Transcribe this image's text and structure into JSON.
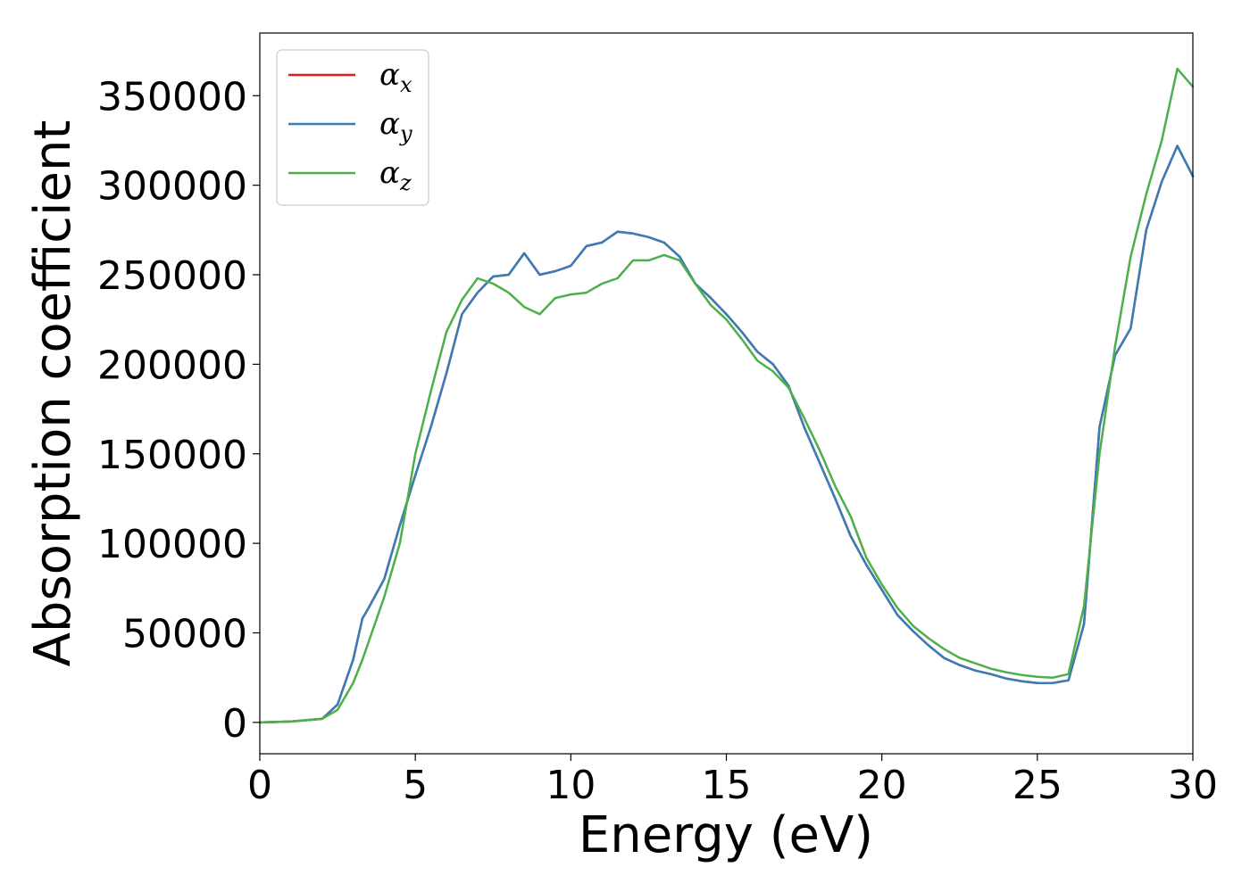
{
  "chart_data": {
    "type": "line",
    "xlabel": "Energy (eV)",
    "ylabel": "Absorption coefficient",
    "xlim": [
      0,
      30
    ],
    "ylim": [
      -17500,
      385000
    ],
    "xticks": [
      0,
      5,
      10,
      15,
      20,
      25,
      30
    ],
    "yticks": [
      0,
      50000,
      100000,
      150000,
      200000,
      250000,
      300000,
      350000
    ],
    "legend_position": "top-left",
    "grid": false,
    "legend": [
      {
        "symbol": "α",
        "sub": "x",
        "color": "#e41a1c"
      },
      {
        "symbol": "α",
        "sub": "y",
        "color": "#377eb8"
      },
      {
        "symbol": "α",
        "sub": "z",
        "color": "#4daf4a"
      }
    ],
    "x": [
      0,
      1,
      2,
      2.5,
      3,
      3.3,
      3.5,
      4,
      4.5,
      5,
      5.5,
      6,
      6.5,
      7,
      7.5,
      8,
      8.5,
      9,
      9.5,
      10,
      10.5,
      11,
      11.5,
      12,
      12.5,
      13,
      13.5,
      14,
      14.5,
      15,
      15.5,
      16,
      16.5,
      17,
      17.5,
      18,
      18.5,
      19,
      19.5,
      20,
      20.5,
      21,
      21.5,
      22,
      22.5,
      23,
      23.5,
      24,
      24.5,
      25,
      25.5,
      26,
      26.5,
      27,
      27.5,
      28,
      28.5,
      29,
      29.5,
      30
    ],
    "series": [
      {
        "values": [
          0,
          500,
          2000,
          10000,
          35000,
          58000,
          64000,
          80000,
          110000,
          138000,
          165000,
          195000,
          228000,
          240000,
          249000,
          250000,
          262000,
          250000,
          252000,
          255000,
          266000,
          268000,
          274000,
          273000,
          271000,
          268000,
          260000,
          245000,
          237000,
          228000,
          218000,
          207000,
          200000,
          188000,
          165000,
          145000,
          125000,
          104000,
          88000,
          74000,
          60000,
          51000,
          43000,
          36000,
          32000,
          29000,
          27000,
          24500,
          23000,
          22000,
          22000,
          23500,
          55000,
          165000,
          205000,
          220000,
          275000,
          302000,
          322000,
          305000
        ]
      },
      {
        "values": [
          0,
          500,
          2000,
          10000,
          35000,
          58000,
          64000,
          80000,
          110000,
          138000,
          165000,
          195000,
          228000,
          240000,
          249000,
          250000,
          262000,
          250000,
          252000,
          255000,
          266000,
          268000,
          274000,
          273000,
          271000,
          268000,
          260000,
          245000,
          237000,
          228000,
          218000,
          207000,
          200000,
          188000,
          165000,
          145000,
          125000,
          104000,
          88000,
          74000,
          60000,
          51000,
          43000,
          36000,
          32000,
          29000,
          27000,
          24500,
          23000,
          22000,
          22000,
          23500,
          55000,
          165000,
          205000,
          220000,
          275000,
          302000,
          322000,
          305000
        ]
      },
      {
        "values": [
          0,
          500,
          2000,
          7000,
          22000,
          35000,
          45000,
          70000,
          100000,
          150000,
          185000,
          218000,
          236000,
          248000,
          245000,
          240000,
          232000,
          228000,
          237000,
          239000,
          240000,
          245000,
          248000,
          258000,
          258000,
          261000,
          258000,
          245000,
          233000,
          225000,
          214000,
          202000,
          196000,
          187000,
          170000,
          152000,
          132000,
          115000,
          92000,
          77000,
          64000,
          54000,
          47000,
          41000,
          36000,
          33000,
          30000,
          28000,
          26500,
          25500,
          25000,
          27000,
          65000,
          150000,
          210000,
          260000,
          295000,
          325000,
          365000,
          355000
        ]
      }
    ]
  }
}
